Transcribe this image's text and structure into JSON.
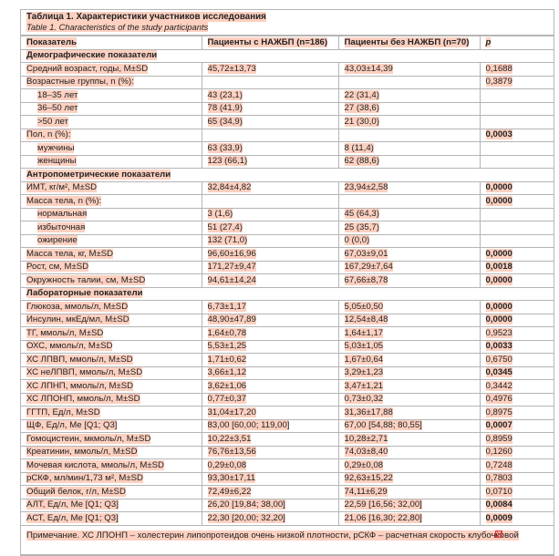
{
  "title": {
    "ru": "Таблица 1. Характеристики участников исследования",
    "en": "Table 1. Characteristics of the study participants"
  },
  "headers": [
    "Показатель",
    "Пациенты с НАЖБП (n=186)",
    "Пациенты без НАЖБП (n=70)",
    "p"
  ],
  "highlight_color": "#fdd0c0",
  "rows": [
    {
      "type": "section",
      "label": "Демографические показатели"
    },
    {
      "label": "Средний возраст, годы, M±SD",
      "a": "45,72±13,73",
      "b": "43,03±14,39",
      "p": "0,1688",
      "bold": false
    },
    {
      "label": "Возрастные группы, n (%):",
      "a": "",
      "b": "",
      "p": "0,3879",
      "bold": false
    },
    {
      "label": "18–35 лет",
      "a": "43 (23,1)",
      "b": "22 (31,4)",
      "p": "",
      "sub": true
    },
    {
      "label": "36–50 лет",
      "a": "78 (41,9)",
      "b": "27 (38,6)",
      "p": "",
      "sub": true
    },
    {
      "label": ">50 лет",
      "a": "65 (34,9)",
      "b": "21 (30,0)",
      "p": "",
      "sub": true
    },
    {
      "label": "Пол, n (%):",
      "a": "",
      "b": "",
      "p": "0,0003",
      "bold": true
    },
    {
      "label": "мужчины",
      "a": "63 (33,9)",
      "b": "8 (11,4)",
      "p": "",
      "sub": true
    },
    {
      "label": "женщины",
      "a": "123 (66,1)",
      "b": "62 (88,6)",
      "p": "",
      "sub": true
    },
    {
      "type": "section",
      "label": "Антропометрические показатели"
    },
    {
      "label": "ИМТ, кг/м², M±SD",
      "a": "32,84±4,82",
      "b": "23,94±2,58",
      "p": "0,0000",
      "bold": true
    },
    {
      "label": "Масса тела, n (%):",
      "a": "",
      "b": "",
      "p": "0,0000",
      "bold": true
    },
    {
      "label": "нормальная",
      "a": "3 (1,6)",
      "b": "45 (64,3)",
      "p": "",
      "sub": true
    },
    {
      "label": "избыточная",
      "a": "51 (27,4)",
      "b": "25 (35,7)",
      "p": "",
      "sub": true
    },
    {
      "label": "ожирение",
      "a": "132 (71,0)",
      "b": "0 (0,0)",
      "p": "",
      "sub": true
    },
    {
      "label": "Масса тела, кг, M±SD",
      "a": "96,60±16,96",
      "b": "67,03±9,01",
      "p": "0,0000",
      "bold": true
    },
    {
      "label": "Рост, см, M±SD",
      "a": "171,27±9,47",
      "b": "167,29±7,64",
      "p": "0,0018",
      "bold": true
    },
    {
      "label": "Окружность талии, см, M±SD",
      "a": "94,61±14,24",
      "b": "67,66±8,78",
      "p": "0,0000",
      "bold": true
    },
    {
      "type": "section",
      "label": "Лабораторные показатели"
    },
    {
      "label": "Глюкоза, ммоль/л, M±SD",
      "a": "6,73±1,17",
      "b": "5,05±0,50",
      "p": "0,0000",
      "bold": true
    },
    {
      "label": "Инсулин, мкЕд/мл, M±SD",
      "a": "48,90±47,89",
      "b": "12,54±8,48",
      "p": "0,0000",
      "bold": true
    },
    {
      "label": "ТГ, ммоль/л, M±SD",
      "a": "1,64±0,78",
      "b": "1,64±1,17",
      "p": "0,9523",
      "bold": false
    },
    {
      "label": "ОХС, ммоль/л, M±SD",
      "a": "5,53±1,25",
      "b": "5,03±1,05",
      "p": "0,0033",
      "bold": true
    },
    {
      "label": "ХС ЛПВП, ммоль/л, M±SD",
      "a": "1,71±0,62",
      "b": "1,67±0,64",
      "p": "0,6750",
      "bold": false
    },
    {
      "label": "ХС неЛПВП, ммоль/л, M±SD",
      "a": "3,66±1,12",
      "b": "3,29±1,23",
      "p": "0,0345",
      "bold": true
    },
    {
      "label": "ХС ЛПНП, ммоль/л, M±SD",
      "a": "3,62±1,06",
      "b": "3,47±1,21",
      "p": "0,3442",
      "bold": false
    },
    {
      "label": "ХС ЛПОНП, ммоль/л, M±SD",
      "a": "0,77±0,37",
      "b": "0,73±0,32",
      "p": "0,4976",
      "bold": false
    },
    {
      "label": "ГГТП, Ед/л, M±SD",
      "a": "31,04±17,20",
      "b": "31,36±17,88",
      "p": "0,8975",
      "bold": false
    },
    {
      "label": "ЩФ, Ед/л, Me [Q1; Q3]",
      "a": "83,00 [60,00; 119,00]",
      "b": "67,00 [54,88; 80,55]",
      "p": "0,0007",
      "bold": true
    },
    {
      "label": "Гомоцистеин, мкмоль/л, M±SD",
      "a": "10,22±3,51",
      "b": "10,28±2,71",
      "p": "0,8959",
      "bold": false
    },
    {
      "label": "Креатинин, ммоль/л, M±SD",
      "a": "76,76±13,56",
      "b": "74,03±8,40",
      "p": "0,1260",
      "bold": false
    },
    {
      "label": "Мочевая кислота, ммоль/л, M±SD",
      "a": "0,29±0,08",
      "b": "0,29±0,08",
      "p": "0,7248",
      "bold": false
    },
    {
      "label": "рСКФ, мл/мин/1,73 м², M±SD",
      "a": "93,30±17,11",
      "b": "92,63±15,22",
      "p": "0,7803",
      "bold": false
    },
    {
      "label": "Общий белок, г/л, M±SD",
      "a": "72,49±6,22",
      "b": "74,11±6,29",
      "p": "0,0710",
      "bold": false
    },
    {
      "label": "АЛТ, Ед/л, Me [Q1; Q3]",
      "a": "26,20 [19,84; 38,00]",
      "b": "22,59 [16,56; 32,00]",
      "p": "0,0084",
      "bold": true
    },
    {
      "label": "АСТ, Ед/л, Me [Q1; Q3]",
      "a": "22,30 [20,00; 32,20]",
      "b": "21,06 [16,30; 22,80]",
      "p": "0,0009",
      "bold": true
    }
  ],
  "note": "Примечание. ХС ЛПОНП – холестерин липопротеидов очень низкой плотности, рСКФ – расчетная скорость клубочковой",
  "icons": {
    "overflow": "broken-image-x-icon"
  }
}
